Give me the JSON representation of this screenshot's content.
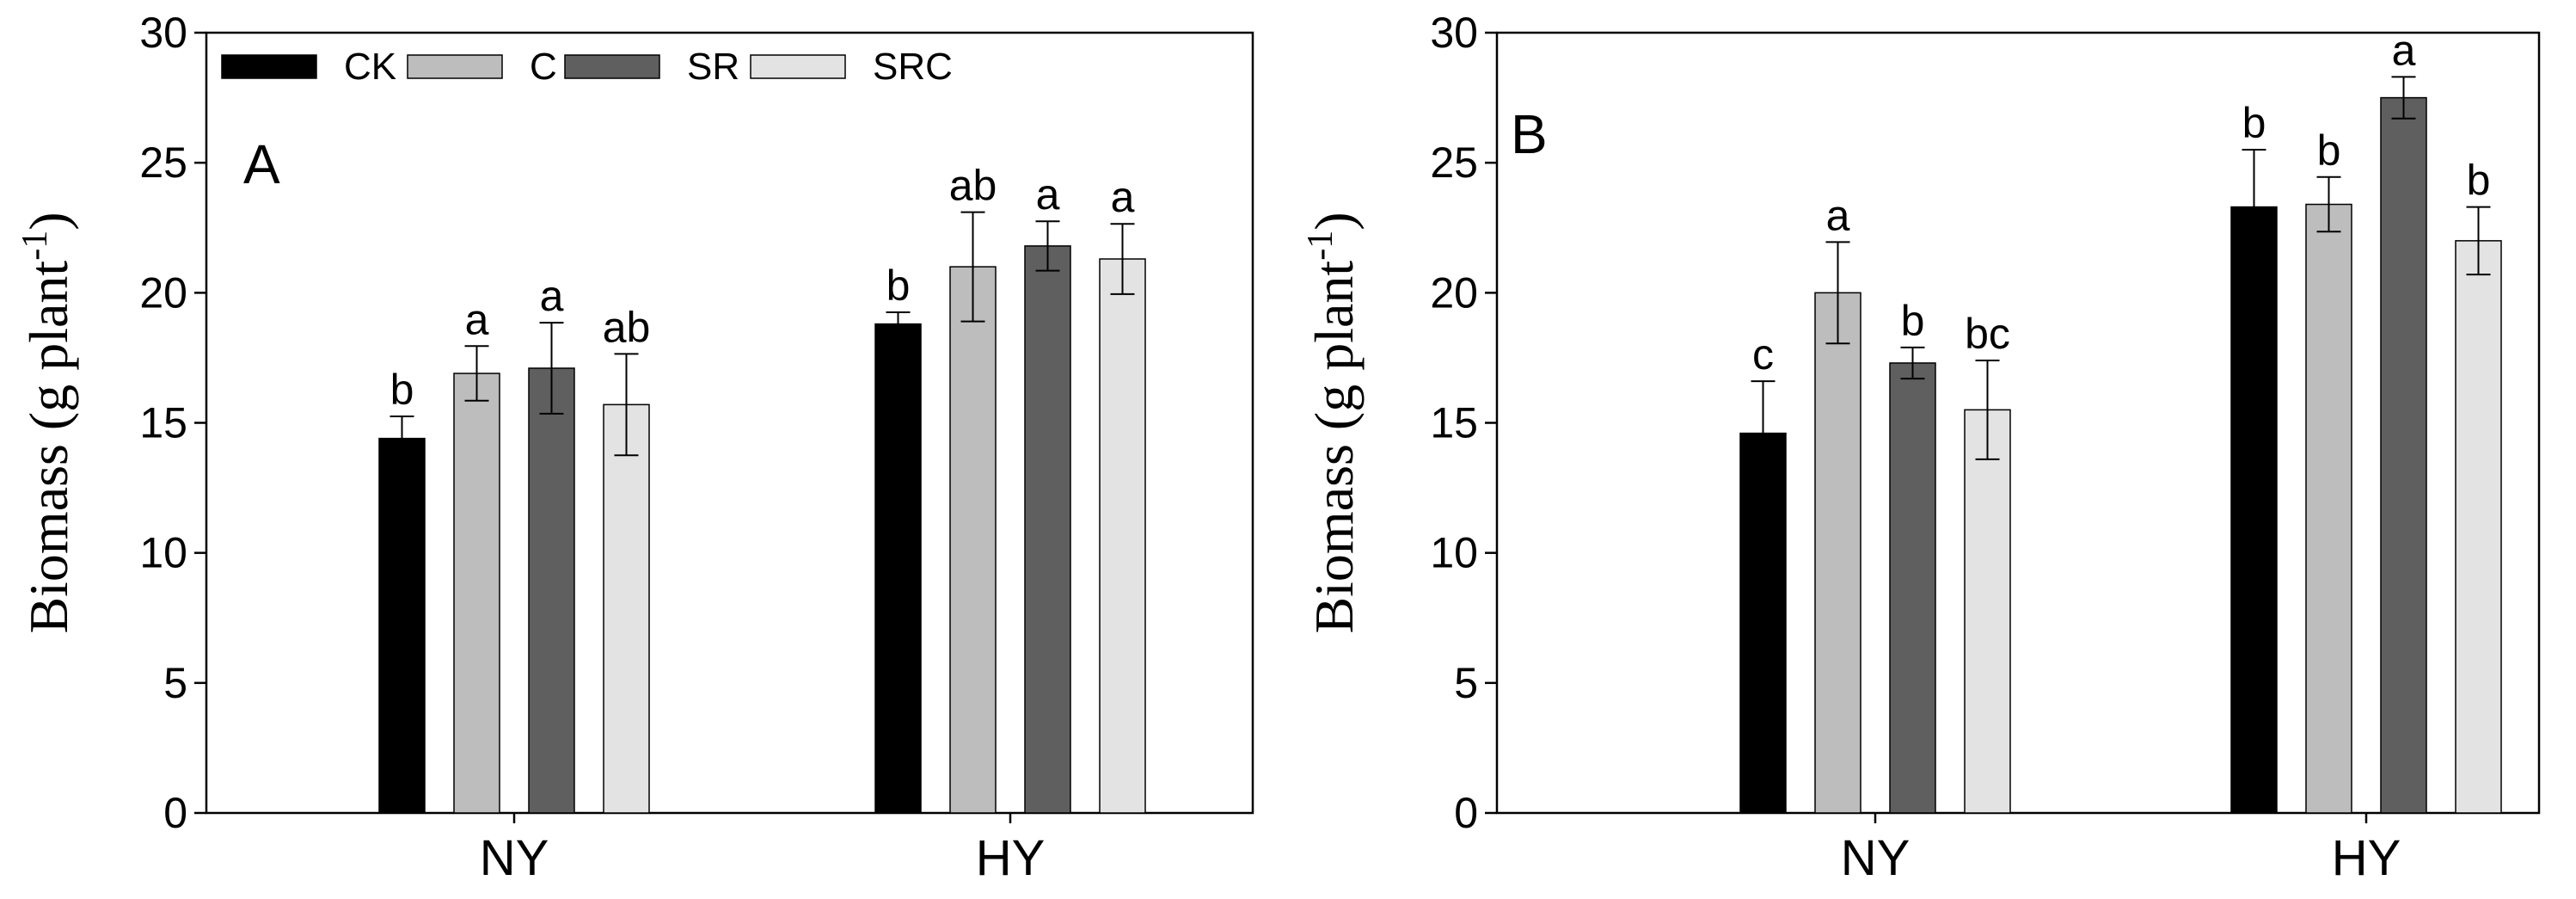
{
  "chart_data": [
    {
      "type": "bar",
      "panel_label": "A",
      "categories": [
        "NY",
        "HY"
      ],
      "ylabel_text": "Biomass (g plant",
      "ylabel_sup": "-1",
      "ylabel_close": ")",
      "ylim": [
        0,
        30
      ],
      "yticks": [
        0,
        5,
        10,
        15,
        20,
        25,
        30
      ],
      "legend_position": "top-left",
      "series": [
        {
          "name": "CK",
          "color": "#000000",
          "values": [
            14.4,
            18.8
          ],
          "errors": [
            0.85,
            0.45
          ],
          "letters": [
            "b",
            "b"
          ]
        },
        {
          "name": "C",
          "color": "#bdbdbd",
          "values": [
            16.9,
            21.0
          ],
          "errors": [
            1.05,
            2.1
          ],
          "letters": [
            "a",
            "ab"
          ]
        },
        {
          "name": "SR",
          "color": "#5f5f5f",
          "values": [
            17.1,
            21.8
          ],
          "errors": [
            1.75,
            0.95
          ],
          "letters": [
            "a",
            "a"
          ]
        },
        {
          "name": "SRC",
          "color": "#e3e3e3",
          "values": [
            15.7,
            21.3
          ],
          "errors": [
            1.95,
            1.35
          ],
          "letters": [
            "ab",
            "a"
          ]
        }
      ]
    },
    {
      "type": "bar",
      "panel_label": "B",
      "categories": [
        "NY",
        "HY"
      ],
      "ylabel_text": "Biomass (g plant",
      "ylabel_sup": "-1",
      "ylabel_close": ")",
      "ylim": [
        0,
        30
      ],
      "yticks": [
        0,
        5,
        10,
        15,
        20,
        25,
        30
      ],
      "series": [
        {
          "name": "CK",
          "color": "#000000",
          "values": [
            14.6,
            23.3
          ],
          "errors": [
            2.0,
            2.2
          ],
          "letters": [
            "c",
            "b"
          ]
        },
        {
          "name": "C",
          "color": "#bdbdbd",
          "values": [
            20.0,
            23.4
          ],
          "errors": [
            1.95,
            1.05
          ],
          "letters": [
            "a",
            "b"
          ]
        },
        {
          "name": "SR",
          "color": "#5f5f5f",
          "values": [
            17.3,
            27.5
          ],
          "errors": [
            0.6,
            0.8
          ],
          "letters": [
            "b",
            "a"
          ]
        },
        {
          "name": "SRC",
          "color": "#e3e3e3",
          "values": [
            15.5,
            22.0
          ],
          "errors": [
            1.9,
            1.3
          ],
          "letters": [
            "bc",
            "b"
          ]
        }
      ]
    }
  ]
}
